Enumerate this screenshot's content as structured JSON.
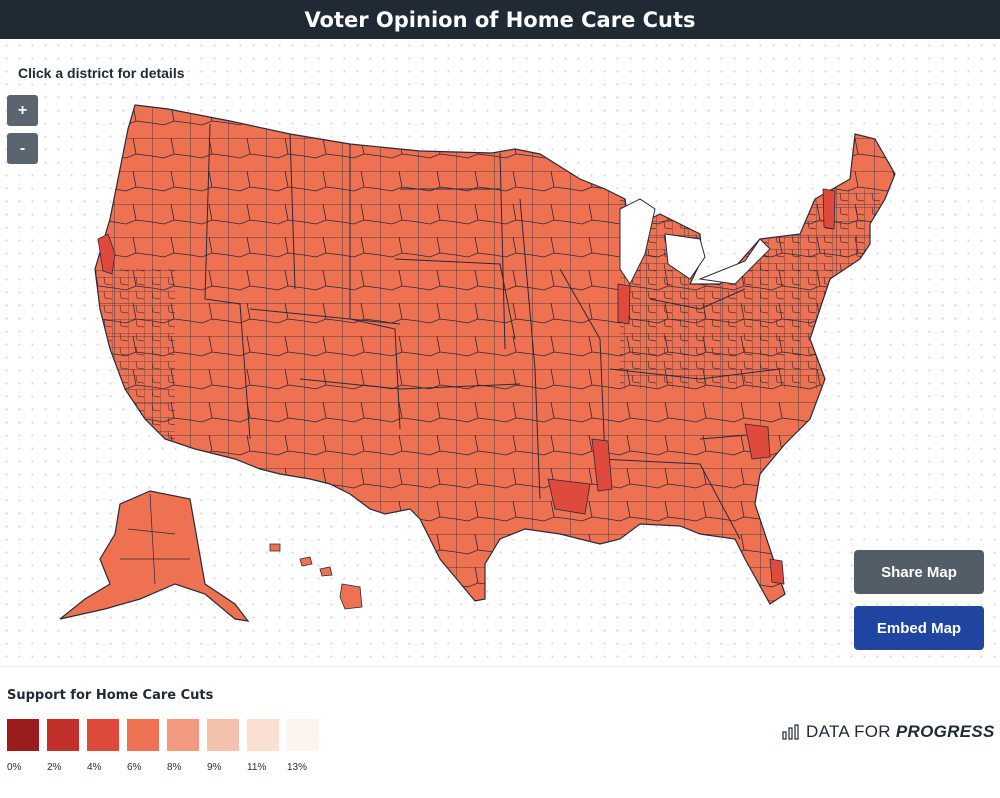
{
  "header": {
    "title": "Voter Opinion of Home Care Cuts"
  },
  "map": {
    "instructions": "Click a district for details",
    "base_fill": "#ee7152",
    "darker_fill": "#e04a3c",
    "border_color": "#2a2a3a"
  },
  "controls": {
    "zoom_in_label": "+",
    "zoom_out_label": "-",
    "share_label": "Share Map",
    "embed_label": "Embed Map"
  },
  "legend": {
    "title": "Support for Home Care Cuts",
    "items": [
      {
        "label": "0%",
        "color": "#9b1c1c"
      },
      {
        "label": "2%",
        "color": "#c2302b"
      },
      {
        "label": "4%",
        "color": "#de4b3b"
      },
      {
        "label": "6%",
        "color": "#ee7152"
      },
      {
        "label": "8%",
        "color": "#f19a7f"
      },
      {
        "label": "9%",
        "color": "#f4c2ac"
      },
      {
        "label": "11%",
        "color": "#f9e0d3"
      },
      {
        "label": "13%",
        "color": "#fdf3ef"
      }
    ]
  },
  "brand": {
    "prefix": "DATA FOR",
    "name": "PROGRESS",
    "icon": "bar-chart-icon"
  }
}
